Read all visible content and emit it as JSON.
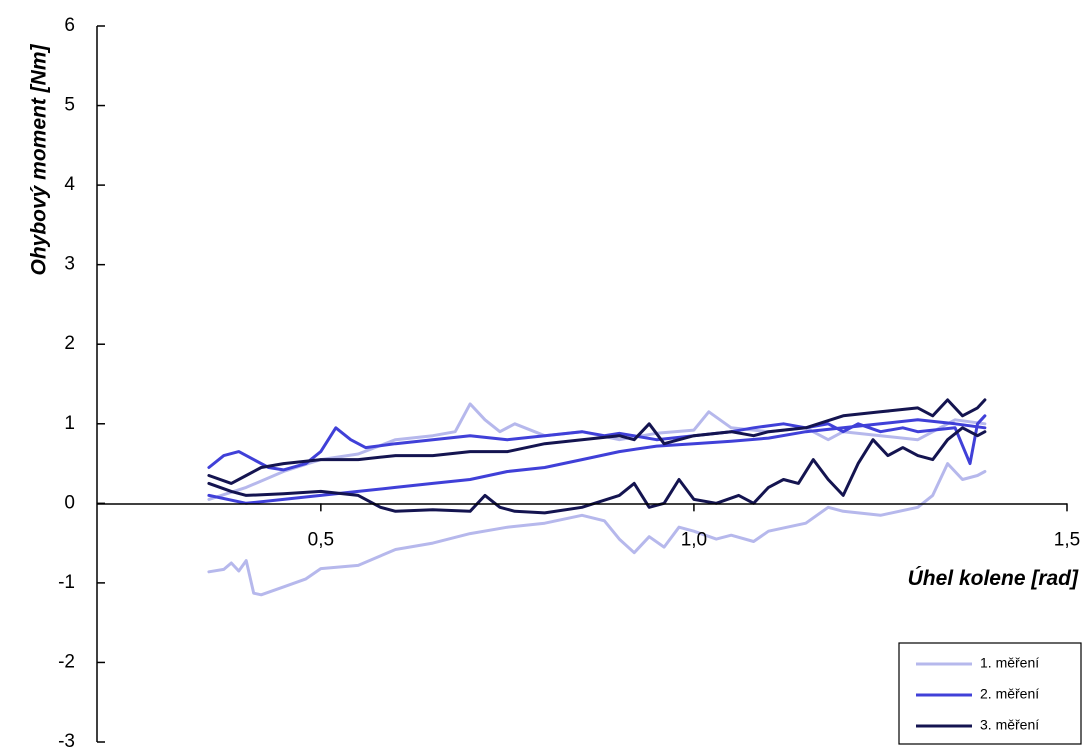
{
  "chart_data": {
    "type": "line",
    "xlabel": "Úhel kolene [rad]",
    "ylabel": "Ohybový moment [Nm]",
    "xlim": [
      0.2,
      1.5
    ],
    "ylim": [
      -3,
      6
    ],
    "x_ticks": [
      {
        "value": 0.5,
        "label": "0,5"
      },
      {
        "value": 1.0,
        "label": "1,0"
      },
      {
        "value": 1.5,
        "label": "1,5"
      }
    ],
    "y_ticks": [
      {
        "value": 6,
        "label": "6"
      },
      {
        "value": 5,
        "label": "5"
      },
      {
        "value": 4,
        "label": "4"
      },
      {
        "value": 3,
        "label": "3"
      },
      {
        "value": 2,
        "label": "2"
      },
      {
        "value": 1,
        "label": "1"
      },
      {
        "value": 0,
        "label": "0"
      },
      {
        "value": -1,
        "label": "-1"
      },
      {
        "value": -2,
        "label": "-2"
      },
      {
        "value": -3,
        "label": "-3"
      }
    ],
    "legend_position": "bottom-right",
    "grid": false,
    "series": [
      {
        "name": "1. měření",
        "color": "#b6b8ec",
        "segments": [
          [
            [
              0.35,
              -0.86
            ],
            [
              0.37,
              -0.83
            ],
            [
              0.38,
              -0.75
            ],
            [
              0.39,
              -0.85
            ],
            [
              0.4,
              -0.72
            ],
            [
              0.41,
              -1.13
            ],
            [
              0.42,
              -1.15
            ],
            [
              0.45,
              -1.05
            ],
            [
              0.48,
              -0.95
            ],
            [
              0.5,
              -0.82
            ],
            [
              0.55,
              -0.78
            ],
            [
              0.6,
              -0.58
            ],
            [
              0.65,
              -0.5
            ],
            [
              0.7,
              -0.38
            ],
            [
              0.75,
              -0.3
            ],
            [
              0.8,
              -0.25
            ],
            [
              0.85,
              -0.15
            ],
            [
              0.88,
              -0.22
            ],
            [
              0.9,
              -0.45
            ],
            [
              0.92,
              -0.62
            ],
            [
              0.94,
              -0.42
            ],
            [
              0.96,
              -0.55
            ],
            [
              0.98,
              -0.3
            ],
            [
              1.0,
              -0.35
            ],
            [
              1.03,
              -0.45
            ],
            [
              1.05,
              -0.4
            ],
            [
              1.08,
              -0.48
            ],
            [
              1.1,
              -0.35
            ],
            [
              1.15,
              -0.25
            ],
            [
              1.18,
              -0.05
            ],
            [
              1.2,
              -0.1
            ],
            [
              1.25,
              -0.15
            ],
            [
              1.3,
              -0.05
            ],
            [
              1.32,
              0.1
            ],
            [
              1.34,
              0.5
            ],
            [
              1.36,
              0.3
            ],
            [
              1.38,
              0.35
            ],
            [
              1.39,
              0.4
            ]
          ],
          [
            [
              0.35,
              0.05
            ],
            [
              0.4,
              0.2
            ],
            [
              0.45,
              0.4
            ],
            [
              0.5,
              0.55
            ],
            [
              0.55,
              0.62
            ],
            [
              0.6,
              0.8
            ],
            [
              0.65,
              0.85
            ],
            [
              0.68,
              0.9
            ],
            [
              0.7,
              1.25
            ],
            [
              0.72,
              1.05
            ],
            [
              0.74,
              0.9
            ],
            [
              0.76,
              1.0
            ],
            [
              0.8,
              0.85
            ],
            [
              0.85,
              0.9
            ],
            [
              0.9,
              0.8
            ],
            [
              0.95,
              0.88
            ],
            [
              1.0,
              0.92
            ],
            [
              1.02,
              1.15
            ],
            [
              1.05,
              0.95
            ],
            [
              1.1,
              0.9
            ],
            [
              1.15,
              0.95
            ],
            [
              1.18,
              0.8
            ],
            [
              1.2,
              0.9
            ],
            [
              1.25,
              0.85
            ],
            [
              1.3,
              0.8
            ],
            [
              1.35,
              1.05
            ],
            [
              1.39,
              1.0
            ]
          ]
        ]
      },
      {
        "name": "2. měření",
        "color": "#4040d8",
        "segments": [
          [
            [
              0.35,
              0.45
            ],
            [
              0.37,
              0.6
            ],
            [
              0.39,
              0.65
            ],
            [
              0.41,
              0.55
            ],
            [
              0.43,
              0.45
            ],
            [
              0.45,
              0.42
            ],
            [
              0.48,
              0.5
            ],
            [
              0.5,
              0.65
            ],
            [
              0.52,
              0.95
            ],
            [
              0.54,
              0.8
            ],
            [
              0.56,
              0.7
            ],
            [
              0.6,
              0.75
            ],
            [
              0.65,
              0.8
            ],
            [
              0.7,
              0.85
            ],
            [
              0.75,
              0.8
            ],
            [
              0.8,
              0.85
            ],
            [
              0.85,
              0.9
            ],
            [
              0.88,
              0.85
            ],
            [
              0.9,
              0.88
            ],
            [
              0.95,
              0.8
            ],
            [
              1.0,
              0.85
            ],
            [
              1.05,
              0.9
            ],
            [
              1.08,
              0.95
            ],
            [
              1.12,
              1.0
            ],
            [
              1.15,
              0.95
            ],
            [
              1.18,
              1.0
            ],
            [
              1.2,
              0.9
            ],
            [
              1.22,
              1.0
            ],
            [
              1.25,
              0.9
            ],
            [
              1.28,
              0.95
            ],
            [
              1.3,
              0.9
            ],
            [
              1.35,
              0.95
            ],
            [
              1.37,
              0.5
            ],
            [
              1.38,
              1.0
            ],
            [
              1.39,
              1.1
            ]
          ],
          [
            [
              0.35,
              0.1
            ],
            [
              0.4,
              0.0
            ],
            [
              0.45,
              0.05
            ],
            [
              0.5,
              0.1
            ],
            [
              0.55,
              0.15
            ],
            [
              0.6,
              0.2
            ],
            [
              0.65,
              0.25
            ],
            [
              0.7,
              0.3
            ],
            [
              0.75,
              0.4
            ],
            [
              0.8,
              0.45
            ],
            [
              0.85,
              0.55
            ],
            [
              0.9,
              0.65
            ],
            [
              0.95,
              0.72
            ],
            [
              1.0,
              0.75
            ],
            [
              1.05,
              0.78
            ],
            [
              1.1,
              0.82
            ],
            [
              1.15,
              0.9
            ],
            [
              1.2,
              0.95
            ],
            [
              1.25,
              1.0
            ],
            [
              1.3,
              1.05
            ],
            [
              1.35,
              1.0
            ],
            [
              1.39,
              0.95
            ]
          ]
        ]
      },
      {
        "name": "3. měření",
        "color": "#141450",
        "segments": [
          [
            [
              0.35,
              0.35
            ],
            [
              0.38,
              0.25
            ],
            [
              0.4,
              0.35
            ],
            [
              0.42,
              0.45
            ],
            [
              0.45,
              0.5
            ],
            [
              0.5,
              0.55
            ],
            [
              0.55,
              0.55
            ],
            [
              0.6,
              0.6
            ],
            [
              0.65,
              0.6
            ],
            [
              0.7,
              0.65
            ],
            [
              0.75,
              0.65
            ],
            [
              0.8,
              0.75
            ],
            [
              0.85,
              0.8
            ],
            [
              0.9,
              0.85
            ],
            [
              0.92,
              0.8
            ],
            [
              0.94,
              1.0
            ],
            [
              0.96,
              0.75
            ],
            [
              1.0,
              0.85
            ],
            [
              1.05,
              0.9
            ],
            [
              1.08,
              0.85
            ],
            [
              1.1,
              0.9
            ],
            [
              1.15,
              0.95
            ],
            [
              1.2,
              1.1
            ],
            [
              1.25,
              1.15
            ],
            [
              1.3,
              1.2
            ],
            [
              1.32,
              1.1
            ],
            [
              1.34,
              1.3
            ],
            [
              1.36,
              1.1
            ],
            [
              1.38,
              1.2
            ],
            [
              1.39,
              1.3
            ]
          ],
          [
            [
              0.35,
              0.25
            ],
            [
              0.38,
              0.15
            ],
            [
              0.4,
              0.1
            ],
            [
              0.45,
              0.12
            ],
            [
              0.5,
              0.15
            ],
            [
              0.55,
              0.1
            ],
            [
              0.58,
              -0.05
            ],
            [
              0.6,
              -0.1
            ],
            [
              0.65,
              -0.08
            ],
            [
              0.7,
              -0.1
            ],
            [
              0.72,
              0.1
            ],
            [
              0.74,
              -0.05
            ],
            [
              0.76,
              -0.1
            ],
            [
              0.8,
              -0.12
            ],
            [
              0.85,
              -0.05
            ],
            [
              0.9,
              0.1
            ],
            [
              0.92,
              0.25
            ],
            [
              0.94,
              -0.05
            ],
            [
              0.96,
              0.0
            ],
            [
              0.98,
              0.3
            ],
            [
              1.0,
              0.05
            ],
            [
              1.03,
              0.0
            ],
            [
              1.06,
              0.1
            ],
            [
              1.08,
              0.0
            ],
            [
              1.1,
              0.2
            ],
            [
              1.12,
              0.3
            ],
            [
              1.14,
              0.25
            ],
            [
              1.16,
              0.55
            ],
            [
              1.18,
              0.3
            ],
            [
              1.2,
              0.1
            ],
            [
              1.22,
              0.5
            ],
            [
              1.24,
              0.8
            ],
            [
              1.26,
              0.6
            ],
            [
              1.28,
              0.7
            ],
            [
              1.3,
              0.6
            ],
            [
              1.32,
              0.55
            ],
            [
              1.34,
              0.8
            ],
            [
              1.36,
              0.95
            ],
            [
              1.38,
              0.85
            ],
            [
              1.39,
              0.9
            ]
          ]
        ]
      }
    ]
  }
}
